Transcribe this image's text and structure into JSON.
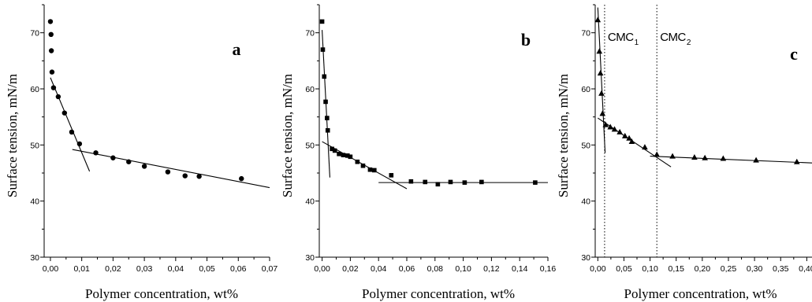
{
  "chart_data": [
    {
      "type": "scatter",
      "panel": "a",
      "marker": "circle",
      "xlabel": "Polymer concentration, wt%",
      "ylabel": "Surface tension, mN/m",
      "xlim": [
        -0.002,
        0.07
      ],
      "ylim": [
        30,
        75
      ],
      "xticks": [
        0.0,
        0.01,
        0.02,
        0.03,
        0.04,
        0.05,
        0.06,
        0.07
      ],
      "xticklabels": [
        "0,00",
        "0,01",
        "0,02",
        "0,03",
        "0,04",
        "0,05",
        "0,06",
        "0,07"
      ],
      "yticks": [
        30,
        40,
        50,
        60,
        70
      ],
      "yticklabels": [
        "30",
        "40",
        "50",
        "60",
        "70"
      ],
      "points": {
        "x": [
          0.0,
          0.0002,
          0.0003,
          0.0005,
          0.001,
          0.0025,
          0.0045,
          0.0068,
          0.0093,
          0.0145,
          0.02,
          0.025,
          0.03,
          0.0375,
          0.043,
          0.0475,
          0.061
        ],
        "y": [
          72.0,
          69.7,
          66.8,
          63.0,
          60.2,
          58.6,
          55.7,
          52.3,
          50.2,
          48.6,
          47.7,
          47.0,
          46.2,
          45.2,
          44.5,
          44.4,
          44.0
        ]
      },
      "fit_lines": [
        {
          "x": [
            0.0,
            0.0125
          ],
          "y": [
            62.0,
            45.3
          ]
        },
        {
          "x": [
            0.007,
            0.07
          ],
          "y": [
            49.2,
            42.4
          ]
        }
      ],
      "vlines": [],
      "annotations": []
    },
    {
      "type": "scatter",
      "panel": "b",
      "marker": "square",
      "xlabel": "Polymer concentration, wt%",
      "ylabel": "Surface tension, mN/m",
      "xlim": [
        -0.002,
        0.16
      ],
      "ylim": [
        30,
        75
      ],
      "xticks": [
        0.0,
        0.02,
        0.04,
        0.06,
        0.08,
        0.1,
        0.12,
        0.14,
        0.16
      ],
      "xticklabels": [
        "0,00",
        "0,02",
        "0,04",
        "0,06",
        "0,08",
        "0,10",
        "0,12",
        "0,14",
        "0,16"
      ],
      "yticks": [
        30,
        40,
        50,
        60,
        70
      ],
      "yticklabels": [
        "30",
        "40",
        "50",
        "60",
        "70"
      ],
      "points": {
        "x": [
          0.0,
          0.0005,
          0.0015,
          0.0025,
          0.0035,
          0.004,
          0.007,
          0.009,
          0.012,
          0.015,
          0.018,
          0.02,
          0.025,
          0.029,
          0.034,
          0.037,
          0.049,
          0.063,
          0.073,
          0.082,
          0.091,
          0.101,
          0.113,
          0.151
        ],
        "y": [
          72.0,
          67.0,
          62.2,
          57.7,
          54.8,
          52.6,
          49.3,
          49.0,
          48.4,
          48.2,
          48.1,
          47.9,
          47.0,
          46.3,
          45.6,
          45.5,
          44.6,
          43.5,
          43.4,
          43.0,
          43.4,
          43.3,
          43.4,
          43.3
        ]
      },
      "fit_lines": [
        {
          "x": [
            0.0,
            0.0055
          ],
          "y": [
            70.5,
            44.2
          ]
        },
        {
          "x": [
            0.0,
            0.06
          ],
          "y": [
            50.6,
            42.2
          ]
        },
        {
          "x": [
            0.04,
            0.16
          ],
          "y": [
            43.3,
            43.3
          ]
        }
      ],
      "vlines": [],
      "annotations": []
    },
    {
      "type": "scatter",
      "panel": "c",
      "marker": "triangle",
      "xlabel": "Polymer concentration, wt%",
      "ylabel": "Surface tension, mN/m",
      "xlim": [
        -0.005,
        0.41
      ],
      "ylim": [
        30,
        75
      ],
      "xticks": [
        0.0,
        0.05,
        0.1,
        0.15,
        0.2,
        0.25,
        0.3,
        0.35,
        0.4
      ],
      "xticklabels": [
        "0,00",
        "0,05",
        "0,10",
        "0,15",
        "0,20",
        "0,25",
        "0,30",
        "0,35",
        "0,40"
      ],
      "yticks": [
        30,
        40,
        50,
        60,
        70
      ],
      "yticklabels": [
        "30",
        "40",
        "50",
        "60",
        "70"
      ],
      "points": {
        "x": [
          0.0,
          0.003,
          0.005,
          0.007,
          0.009,
          0.015,
          0.024,
          0.032,
          0.042,
          0.052,
          0.06,
          0.065,
          0.09,
          0.113,
          0.143,
          0.185,
          0.205,
          0.24,
          0.303,
          0.381
        ],
        "y": [
          72.3,
          66.7,
          62.8,
          59.2,
          55.6,
          53.6,
          53.2,
          52.8,
          52.3,
          51.6,
          51.2,
          50.6,
          49.6,
          48.3,
          48.0,
          47.8,
          47.7,
          47.6,
          47.3,
          47.0
        ]
      },
      "fit_lines": [
        {
          "x": [
            0.0,
            0.014
          ],
          "y": [
            74.5,
            48.6
          ]
        },
        {
          "x": [
            0.0,
            0.14
          ],
          "y": [
            54.8,
            46.1
          ]
        },
        {
          "x": [
            0.1,
            0.41
          ],
          "y": [
            48.0,
            46.8
          ]
        }
      ],
      "vlines": [
        0.013,
        0.113
      ],
      "annotations": [
        {
          "base": "CMC",
          "sub": "1"
        },
        {
          "base": "CMC",
          "sub": "2"
        }
      ]
    }
  ]
}
